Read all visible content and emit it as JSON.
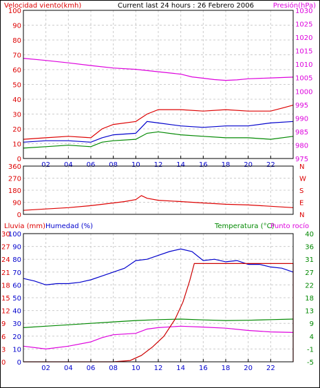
{
  "colors": {
    "red": "#dd0000",
    "blue": "#0000cc",
    "green": "#008800",
    "magenta": "#dd00dd",
    "darkred": "#cc0000",
    "grid": "#cccccc",
    "axis": "#000000"
  },
  "header": {
    "title_left": "Velocidad viento(kmh)",
    "title_center": "Current last 24 hours : 26 Febrero 2006",
    "title_right": "Presión(hPa)"
  },
  "middle": {
    "dir_letters": [
      "N",
      "W",
      "S",
      "E",
      "N"
    ]
  },
  "bottom": {
    "label_rain": "Lluvia (mm)",
    "label_hum": "Humedad (%)",
    "label_temp": "Temperatura (°C)",
    "label_dew": "Punto rocío"
  },
  "chart_data": [
    {
      "type": "line",
      "x_ticks": [
        "02",
        "04",
        "06",
        "08",
        "10",
        "12",
        "14",
        "16",
        "18",
        "20",
        "22"
      ],
      "x_hours": [
        2,
        4,
        6,
        8,
        10,
        12,
        14,
        16,
        18,
        20,
        22
      ],
      "xlim": [
        0,
        24
      ],
      "ylabel_left": "Velocidad viento(kmh)",
      "ylabel_right": "Presión(hPa)",
      "ylim_left": [
        0,
        100
      ],
      "ylim_right": [
        975,
        1030
      ],
      "y_ticks_left": [
        "0",
        "10",
        "20",
        "30",
        "40",
        "50",
        "60",
        "70",
        "80",
        "90",
        "100"
      ],
      "y_ticks_right": [
        "975",
        "980",
        "985",
        "990",
        "995",
        "1000",
        "1005",
        "1010",
        "1015",
        "1020",
        "1025",
        "1030"
      ],
      "series": [
        {
          "axis": "right",
          "color": "magenta",
          "x": [
            0,
            2,
            4,
            6,
            8,
            10,
            12,
            14,
            15,
            16,
            17,
            18,
            19,
            20,
            22,
            24
          ],
          "y": [
            1012.2,
            1011.4,
            1010.5,
            1009.5,
            1008.6,
            1008.1,
            1007.2,
            1006.3,
            1005.3,
            1004.8,
            1004.3,
            1004.0,
            1004.2,
            1004.6,
            1004.9,
            1005.2
          ]
        },
        {
          "axis": "left",
          "color": "red",
          "x": [
            0,
            2,
            4,
            6,
            7,
            8,
            10,
            11,
            12,
            14,
            16,
            18,
            20,
            22,
            23,
            24
          ],
          "y": [
            13,
            14,
            15,
            14,
            20,
            23,
            25,
            30,
            33,
            33,
            32,
            33,
            32,
            32,
            34,
            36
          ]
        },
        {
          "axis": "left",
          "color": "blue",
          "x": [
            0,
            2,
            4,
            6,
            7,
            8,
            10,
            11,
            12,
            14,
            16,
            18,
            20,
            22,
            24
          ],
          "y": [
            11,
            12,
            12,
            11,
            14,
            16,
            17,
            25,
            24,
            22,
            21,
            22,
            22,
            24,
            25
          ]
        },
        {
          "axis": "left",
          "color": "green",
          "x": [
            0,
            2,
            4,
            6,
            7,
            8,
            10,
            11,
            12,
            14,
            16,
            18,
            20,
            22,
            24
          ],
          "y": [
            7,
            8,
            9,
            8,
            11,
            12,
            13,
            17,
            18,
            16,
            15,
            14,
            14,
            13,
            15
          ]
        }
      ]
    },
    {
      "type": "line",
      "xlim": [
        0,
        24
      ],
      "ylim": [
        0,
        360
      ],
      "y_ticks": [
        "0",
        "90",
        "180",
        "270",
        "360"
      ],
      "y_tick_values": [
        0,
        90,
        180,
        270,
        360
      ],
      "series": [
        {
          "color": "red",
          "x": [
            0,
            2,
            4,
            6,
            8,
            9,
            10,
            10.5,
            11,
            12,
            14,
            16,
            18,
            20,
            22,
            24
          ],
          "y": [
            30,
            40,
            50,
            65,
            85,
            95,
            110,
            140,
            120,
            105,
            95,
            85,
            75,
            70,
            60,
            50
          ]
        }
      ]
    },
    {
      "type": "line",
      "xlim": [
        0,
        24
      ],
      "y_ticks_left_rain": [
        "0",
        "3",
        "6",
        "9",
        "12",
        "15",
        "18",
        "21",
        "24",
        "27",
        "30"
      ],
      "y_ticks_left_hum": [
        "0",
        "10",
        "20",
        "30",
        "40",
        "50",
        "60",
        "70",
        "80",
        "90",
        "100"
      ],
      "y_ticks_right_temp": [
        "-5",
        "-1",
        "4",
        "9",
        "13",
        "18",
        "22",
        "27",
        "31",
        "36",
        "40"
      ],
      "ylim_rain": [
        0,
        30
      ],
      "ylim_hum": [
        0,
        100
      ],
      "ylim_temp": [
        -5,
        40
      ],
      "series": [
        {
          "name": "Humedad (%)",
          "axis": "hum",
          "color": "blue",
          "x": [
            0,
            1,
            2,
            3,
            4,
            5,
            6,
            7,
            8,
            9,
            10,
            11,
            12,
            13,
            14,
            15,
            16,
            17,
            18,
            19,
            20,
            21,
            22,
            23,
            24
          ],
          "y": [
            65,
            63,
            60,
            61,
            61,
            62,
            64,
            67,
            70,
            73,
            79,
            80,
            83,
            86,
            88,
            86,
            79,
            80,
            78,
            79,
            76,
            76,
            74,
            73,
            70
          ]
        },
        {
          "name": "Temperatura (°C)",
          "axis": "temp",
          "color": "green",
          "x": [
            0,
            2,
            4,
            6,
            8,
            10,
            12,
            14,
            16,
            18,
            20,
            22,
            24
          ],
          "y": [
            7.0,
            7.5,
            8.0,
            8.5,
            9.0,
            9.5,
            9.8,
            10.0,
            9.7,
            9.5,
            9.6,
            9.8,
            10.0
          ]
        },
        {
          "name": "Punto rocío",
          "axis": "temp",
          "color": "magenta",
          "x": [
            0,
            2,
            4,
            6,
            7,
            8,
            10,
            11,
            12,
            14,
            16,
            18,
            20,
            22,
            24
          ],
          "y": [
            0.5,
            -0.5,
            0.5,
            2.0,
            3.5,
            4.5,
            5.0,
            6.5,
            7.0,
            7.5,
            7.2,
            6.8,
            6.0,
            5.5,
            5.3
          ]
        },
        {
          "name": "Lluvia (mm)",
          "axis": "rain",
          "color": "darkred",
          "x": [
            0,
            8,
            9.5,
            10.5,
            11.5,
            12.5,
            13.5,
            14.2,
            14.8,
            15.2,
            24,
            24
          ],
          "y": [
            0,
            0,
            0.3,
            1.5,
            3.5,
            6.0,
            10.0,
            14.0,
            19.0,
            23.0,
            23.0,
            0
          ]
        }
      ]
    }
  ]
}
